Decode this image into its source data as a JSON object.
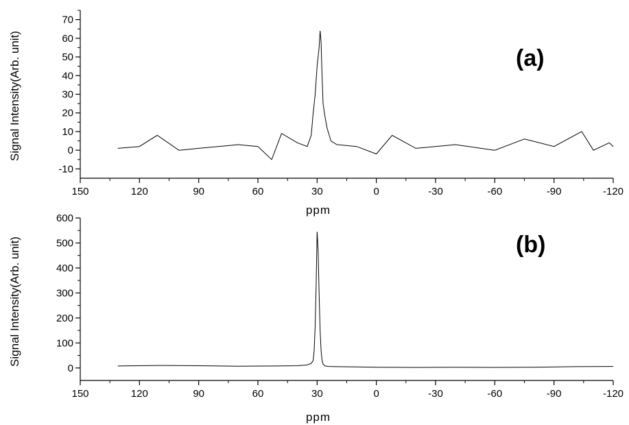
{
  "chart_data": [
    {
      "type": "line",
      "panel_label": "(a)",
      "xlabel": "ppm",
      "ylabel": "Signal Intensity(Arb. unit)",
      "xlim": [
        150,
        -120
      ],
      "ylim": [
        -15,
        75
      ],
      "x_ticks": [
        150,
        120,
        90,
        60,
        30,
        0,
        -30,
        -60,
        -90,
        -120
      ],
      "x_tick_labels": [
        "150",
        "120",
        "90",
        "60",
        "30",
        "0",
        "-30",
        "-60",
        "-90",
        "-120"
      ],
      "y_ticks": [
        -10,
        0,
        10,
        20,
        30,
        40,
        50,
        60,
        70
      ],
      "y_tick_labels": [
        "-10",
        "0",
        "10",
        "20",
        "30",
        "40",
        "50",
        "60",
        "70"
      ],
      "grid": false,
      "series": [
        {
          "x": [
            131,
            120,
            111,
            100,
            90,
            80,
            70,
            60,
            53,
            48,
            40,
            35,
            33,
            32,
            31,
            30,
            29,
            28.5,
            28,
            27.5,
            27,
            26,
            25,
            23,
            20,
            10,
            0,
            -8,
            -20,
            -40,
            -60,
            -75,
            -90,
            -104,
            -110,
            -118,
            -120
          ],
          "values": [
            1,
            2,
            8,
            0,
            1,
            2,
            3,
            2,
            -5,
            9,
            4,
            2,
            8,
            20,
            30,
            45,
            55,
            64,
            58,
            40,
            25,
            18,
            12,
            5,
            3,
            2,
            -2,
            8,
            1,
            3,
            0,
            6,
            2,
            10,
            0,
            4,
            2
          ]
        }
      ]
    },
    {
      "type": "line",
      "panel_label": "(b)",
      "xlabel": "ppm",
      "ylabel": "Signal Intensity(Arb. unit)",
      "xlim": [
        150,
        -120
      ],
      "ylim": [
        -50,
        600
      ],
      "x_ticks": [
        150,
        120,
        90,
        60,
        30,
        0,
        -30,
        -60,
        -90,
        -120
      ],
      "x_tick_labels": [
        "150",
        "120",
        "90",
        "60",
        "30",
        "0",
        "-30",
        "-60",
        "-90",
        "-120"
      ],
      "y_ticks": [
        0,
        100,
        200,
        300,
        400,
        500,
        600
      ],
      "y_tick_labels": [
        "0",
        "100",
        "200",
        "300",
        "400",
        "500",
        "600"
      ],
      "grid": false,
      "series": [
        {
          "x": [
            131,
            110,
            90,
            70,
            50,
            40,
            35,
            33,
            32,
            31.5,
            31,
            30.5,
            30,
            29.5,
            29,
            28.5,
            28,
            27.5,
            27,
            26,
            24,
            20,
            10,
            0,
            -20,
            -40,
            -60,
            -80,
            -100,
            -120
          ],
          "values": [
            8,
            10,
            9,
            7,
            8,
            9,
            12,
            18,
            30,
            70,
            170,
            330,
            545,
            470,
            300,
            150,
            70,
            30,
            15,
            8,
            6,
            5,
            4,
            3,
            2,
            3,
            2,
            3,
            5,
            6
          ]
        }
      ]
    }
  ]
}
